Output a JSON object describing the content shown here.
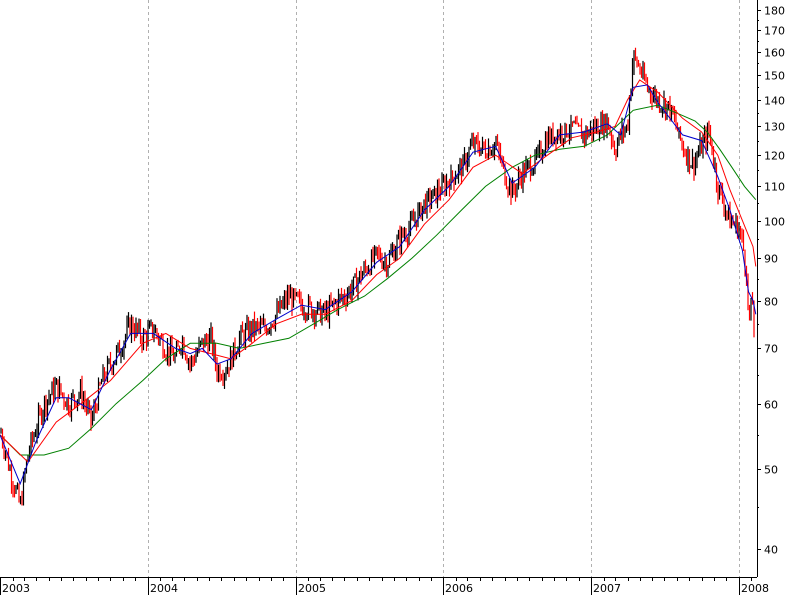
{
  "chart_data": {
    "type": "line",
    "title": "",
    "xlabel": "",
    "ylabel": "",
    "y_scale": "log",
    "ylim": [
      37,
      185
    ],
    "xlim": [
      "2003-01-01",
      "2008-02-15"
    ],
    "y_ticks": [
      40,
      50,
      60,
      70,
      80,
      90,
      100,
      110,
      120,
      130,
      140,
      150,
      160,
      170,
      180
    ],
    "y_tick_labels": [
      "40",
      "50",
      "60",
      "70",
      "80",
      "90",
      "100",
      "110",
      "120",
      "130",
      "140",
      "150",
      "160",
      "170",
      "180"
    ],
    "x_year_labels": [
      {
        "date": "2003-01-01",
        "label": "2003"
      },
      {
        "date": "2004-01-01",
        "label": "2004"
      },
      {
        "date": "2005-01-01",
        "label": "2005"
      },
      {
        "date": "2006-01-01",
        "label": "2006"
      },
      {
        "date": "2007-01-01",
        "label": "2007"
      },
      {
        "date": "2008-01-01",
        "label": "2008"
      }
    ],
    "grid": "vertical dashed at year boundaries",
    "colors": {
      "price": "#000000",
      "down_bars": "#ff0000",
      "ma_short": "#0000cc",
      "ma_medium": "#ff0000",
      "ma_long": "#008000",
      "grid": "#b0b0b0"
    },
    "series": [
      {
        "role": "price",
        "x": [
          "2003-01-01",
          "2003-01-25",
          "2003-02-20",
          "2003-03-11",
          "2003-03-31",
          "2003-04-20",
          "2003-05-20",
          "2003-06-20",
          "2003-07-20",
          "2003-08-15",
          "2003-09-10",
          "2003-10-01",
          "2003-10-25",
          "2003-11-20",
          "2003-12-20",
          "2004-01-15",
          "2004-02-15",
          "2004-03-10",
          "2004-03-25",
          "2004-04-15",
          "2004-05-15",
          "2004-06-05",
          "2004-06-20",
          "2004-07-10",
          "2004-07-25",
          "2004-08-15",
          "2004-09-15",
          "2004-10-15",
          "2004-11-15",
          "2004-12-15",
          "2005-01-15",
          "2005-02-15",
          "2005-03-15",
          "2005-04-15",
          "2005-05-01",
          "2005-05-20",
          "2005-06-20",
          "2005-07-20",
          "2005-08-15",
          "2005-09-15",
          "2005-10-15",
          "2005-11-15",
          "2005-12-15",
          "2006-01-15",
          "2006-02-15",
          "2006-03-15",
          "2006-04-15",
          "2006-05-10",
          "2006-06-01",
          "2006-06-20",
          "2006-07-15",
          "2006-08-15",
          "2006-09-15",
          "2006-10-15",
          "2006-11-15",
          "2006-12-15",
          "2007-01-15",
          "2007-02-10",
          "2007-03-01",
          "2007-03-15",
          "2007-04-01",
          "2007-04-15",
          "2007-05-01",
          "2007-05-20",
          "2007-06-15",
          "2007-07-15",
          "2007-08-15",
          "2007-09-10",
          "2007-10-01",
          "2007-10-20",
          "2007-11-10",
          "2007-11-25",
          "2007-12-10",
          "2008-01-01",
          "2008-01-10",
          "2008-01-20",
          "2008-01-25",
          "2008-02-05",
          "2008-02-12"
        ],
        "values": [
          56,
          50,
          45,
          52,
          56,
          60,
          63,
          60,
          62,
          57,
          64,
          67,
          70,
          75,
          72,
          74,
          70,
          68,
          72,
          67,
          71,
          72,
          66,
          66,
          68,
          72,
          74,
          74,
          77,
          81,
          79,
          78,
          77,
          80,
          81,
          83,
          87,
          91,
          89,
          95,
          99,
          105,
          108,
          112,
          116,
          124,
          122,
          124,
          114,
          108,
          114,
          118,
          126,
          128,
          130,
          127,
          130,
          132,
          122,
          127,
          130,
          158,
          153,
          145,
          140,
          137,
          123,
          117,
          123,
          128,
          110,
          105,
          100,
          98,
          94,
          87,
          75,
          80,
          65
        ],
        "high": [
          58,
          53,
          48,
          54,
          58,
          62,
          65,
          62,
          64,
          59,
          66,
          69,
          72,
          77,
          74,
          76,
          72,
          70,
          74,
          69,
          73,
          74,
          68,
          68,
          70,
          74,
          76,
          76,
          79,
          83,
          81,
          80,
          79,
          82,
          83,
          85,
          89,
          93,
          91,
          97,
          101,
          107,
          110,
          114,
          118,
          126,
          124,
          126,
          116,
          111,
          116,
          120,
          128,
          130,
          132,
          129,
          132,
          134,
          125,
          130,
          133,
          161,
          156,
          148,
          142,
          139,
          126,
          120,
          126,
          131,
          113,
          108,
          103,
          101,
          97,
          90,
          79,
          84,
          73
        ],
        "low": [
          53,
          47,
          43,
          49,
          53,
          57,
          60,
          57,
          59,
          54,
          61,
          64,
          67,
          72,
          69,
          71,
          67,
          65,
          69,
          64,
          68,
          69,
          63,
          63,
          65,
          69,
          71,
          71,
          74,
          78,
          76,
          75,
          74,
          77,
          78,
          80,
          84,
          88,
          86,
          92,
          96,
          102,
          105,
          109,
          113,
          121,
          119,
          121,
          109,
          104,
          111,
          115,
          123,
          125,
          127,
          124,
          127,
          129,
          119,
          124,
          127,
          152,
          148,
          141,
          136,
          133,
          119,
          113,
          119,
          124,
          106,
          101,
          96,
          94,
          90,
          83,
          69,
          74,
          63
        ]
      },
      {
        "role": "ma_short",
        "x": [
          "2003-01-01",
          "2003-02-20",
          "2003-03-31",
          "2003-05-20",
          "2003-06-20",
          "2003-08-15",
          "2003-10-01",
          "2003-11-20",
          "2004-01-15",
          "2004-03-10",
          "2004-04-15",
          "2004-05-15",
          "2004-06-20",
          "2004-07-25",
          "2004-09-15",
          "2004-11-15",
          "2005-01-15",
          "2005-03-15",
          "2005-05-20",
          "2005-07-20",
          "2005-09-15",
          "2005-11-15",
          "2006-01-15",
          "2006-03-15",
          "2006-05-10",
          "2006-06-20",
          "2006-08-15",
          "2006-10-15",
          "2006-12-15",
          "2007-02-10",
          "2007-03-15",
          "2007-04-15",
          "2007-05-20",
          "2007-06-15",
          "2007-08-15",
          "2007-10-01",
          "2007-11-10",
          "2007-12-10",
          "2008-01-10",
          "2008-01-25",
          "2008-02-05",
          "2008-02-12"
        ],
        "values": [
          55,
          48,
          54,
          61,
          61,
          59,
          66,
          73,
          73,
          70,
          69,
          70,
          67,
          68,
          73,
          76,
          79,
          78,
          82,
          89,
          93,
          103,
          110,
          121,
          123,
          111,
          116,
          127,
          128,
          131,
          127,
          145,
          146,
          139,
          127,
          125,
          113,
          103,
          92,
          82,
          80,
          77
        ]
      },
      {
        "role": "ma_medium",
        "x": [
          "2003-01-01",
          "2003-03-11",
          "2003-05-20",
          "2003-07-20",
          "2003-10-01",
          "2003-12-20",
          "2004-02-15",
          "2004-04-15",
          "2004-06-05",
          "2004-07-25",
          "2004-09-15",
          "2004-11-15",
          "2005-01-15",
          "2005-03-15",
          "2005-05-20",
          "2005-07-20",
          "2005-09-15",
          "2005-11-15",
          "2006-01-15",
          "2006-03-15",
          "2006-05-10",
          "2006-07-15",
          "2006-09-15",
          "2006-11-15",
          "2007-01-15",
          "2007-03-01",
          "2007-04-01",
          "2007-05-01",
          "2007-06-15",
          "2007-08-15",
          "2007-10-01",
          "2007-11-10",
          "2007-12-10",
          "2008-01-10",
          "2008-02-05",
          "2008-02-12"
        ],
        "values": [
          55,
          51,
          57,
          60,
          64,
          71,
          73,
          70,
          69,
          68,
          71,
          75,
          77,
          77,
          80,
          86,
          90,
          99,
          106,
          116,
          120,
          114,
          120,
          126,
          128,
          130,
          140,
          148,
          143,
          133,
          128,
          120,
          109,
          100,
          93,
          88
        ]
      },
      {
        "role": "ma_long",
        "x": [
          "2003-01-01",
          "2003-02-20",
          "2003-04-20",
          "2003-06-20",
          "2003-08-15",
          "2003-10-15",
          "2003-12-20",
          "2004-02-15",
          "2004-04-15",
          "2004-06-20",
          "2004-08-15",
          "2004-10-15",
          "2004-12-15",
          "2005-02-15",
          "2005-04-15",
          "2005-06-20",
          "2005-08-15",
          "2005-10-15",
          "2005-12-15",
          "2006-02-15",
          "2006-04-15",
          "2006-06-20",
          "2006-08-15",
          "2006-10-15",
          "2006-12-15",
          "2007-02-10",
          "2007-04-15",
          "2007-06-15",
          "2007-08-15",
          "2007-09-15",
          "2007-10-15",
          "2007-11-15",
          "2007-12-15",
          "2008-01-15",
          "2008-02-12"
        ],
        "values": [
          55,
          52,
          52,
          53,
          56,
          60,
          64,
          68,
          71,
          71,
          70,
          71,
          72,
          75,
          78,
          81,
          85,
          90,
          96,
          103,
          110,
          116,
          120,
          122,
          123,
          127,
          136,
          138,
          134,
          132,
          128,
          122,
          116,
          110,
          106
        ]
      }
    ]
  }
}
